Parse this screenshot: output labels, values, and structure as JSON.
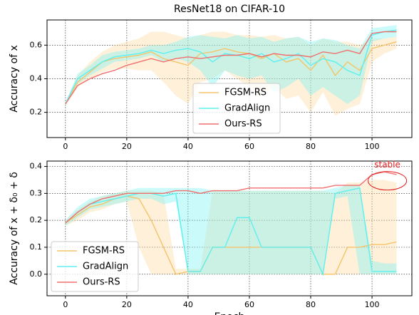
{
  "chart_data": [
    {
      "type": "line",
      "title": "ResNet18 on CIFAR-10",
      "ylabel": "Accuracy of x",
      "x": [
        0,
        4,
        8,
        12,
        16,
        20,
        24,
        28,
        32,
        36,
        40,
        44,
        48,
        52,
        56,
        60,
        64,
        68,
        72,
        76,
        80,
        84,
        88,
        92,
        96,
        100,
        104,
        108
      ],
      "xlim": [
        -6,
        113
      ],
      "xticks": [
        0,
        20,
        40,
        60,
        80,
        100
      ],
      "ylim": [
        0.05,
        0.75
      ],
      "yticks": [
        0.2,
        0.4,
        0.6
      ],
      "grid": true,
      "legend": "lower center",
      "series": [
        {
          "name": "FGSM-RS",
          "color": "#f5c46b",
          "band_color": "#fcd9a0",
          "values": [
            0.25,
            0.38,
            0.44,
            0.5,
            0.52,
            0.53,
            0.54,
            0.56,
            0.52,
            0.5,
            0.48,
            0.55,
            0.56,
            0.58,
            0.56,
            0.55,
            0.52,
            0.55,
            0.5,
            0.52,
            0.45,
            0.54,
            0.42,
            0.5,
            0.45,
            0.58,
            0.6,
            0.62
          ],
          "lower": [
            0.24,
            0.35,
            0.4,
            0.44,
            0.46,
            0.46,
            0.45,
            0.45,
            0.38,
            0.3,
            0.25,
            0.38,
            0.4,
            0.45,
            0.4,
            0.35,
            0.3,
            0.35,
            0.28,
            0.3,
            0.2,
            0.32,
            0.18,
            0.22,
            0.25,
            0.5,
            0.55,
            0.58
          ],
          "upper": [
            0.26,
            0.42,
            0.5,
            0.56,
            0.6,
            0.62,
            0.64,
            0.68,
            0.68,
            0.66,
            0.64,
            0.66,
            0.68,
            0.68,
            0.66,
            0.66,
            0.65,
            0.66,
            0.64,
            0.65,
            0.6,
            0.64,
            0.62,
            0.62,
            0.6,
            0.64,
            0.64,
            0.65
          ]
        },
        {
          "name": "GradAlign",
          "color": "#5ef0f0",
          "band_color": "#7df3f3",
          "values": [
            0.25,
            0.4,
            0.45,
            0.5,
            0.53,
            0.54,
            0.55,
            0.57,
            0.55,
            0.57,
            0.58,
            0.56,
            0.5,
            0.55,
            0.54,
            0.52,
            0.55,
            0.5,
            0.52,
            0.55,
            0.48,
            0.52,
            0.5,
            0.45,
            0.42,
            0.66,
            0.68,
            0.69
          ],
          "lower": [
            0.24,
            0.37,
            0.42,
            0.46,
            0.5,
            0.51,
            0.52,
            0.54,
            0.5,
            0.52,
            0.5,
            0.45,
            0.35,
            0.45,
            0.42,
            0.4,
            0.42,
            0.32,
            0.35,
            0.4,
            0.3,
            0.35,
            0.3,
            0.25,
            0.3,
            0.62,
            0.64,
            0.65
          ],
          "upper": [
            0.26,
            0.43,
            0.48,
            0.54,
            0.56,
            0.57,
            0.58,
            0.6,
            0.6,
            0.62,
            0.65,
            0.66,
            0.65,
            0.64,
            0.66,
            0.64,
            0.65,
            0.62,
            0.64,
            0.65,
            0.62,
            0.64,
            0.63,
            0.6,
            0.58,
            0.7,
            0.71,
            0.72
          ]
        },
        {
          "name": "Ours-RS",
          "color": "#f07070",
          "values": [
            0.25,
            0.36,
            0.4,
            0.43,
            0.45,
            0.48,
            0.5,
            0.52,
            0.5,
            0.52,
            0.53,
            0.52,
            0.53,
            0.54,
            0.54,
            0.55,
            0.53,
            0.55,
            0.54,
            0.54,
            0.53,
            0.56,
            0.55,
            0.57,
            0.55,
            0.67,
            0.68,
            0.68
          ]
        }
      ]
    },
    {
      "type": "line",
      "ylabel": "Accuracy of x + δ₀ + δ",
      "xlabel": "Epoch",
      "x": [
        0,
        4,
        8,
        12,
        16,
        20,
        24,
        28,
        32,
        36,
        40,
        44,
        48,
        52,
        56,
        60,
        64,
        68,
        72,
        76,
        80,
        84,
        88,
        92,
        96,
        100,
        104,
        108
      ],
      "xlim": [
        -6,
        113
      ],
      "xticks": [
        0,
        20,
        40,
        60,
        80,
        100
      ],
      "ylim": [
        -0.08,
        0.42
      ],
      "yticks": [
        {
          "value": 0,
          "label": "0.0"
        },
        0.1,
        0.2,
        0.3,
        0.4
      ],
      "grid": true,
      "legend": "lower left",
      "annotation": {
        "text": "stable",
        "x": 105,
        "y": 0.405,
        "color": "#e02020"
      },
      "series": [
        {
          "name": "FGSM-RS",
          "color": "#f5c46b",
          "band_color": "#fcd9a0",
          "values": [
            0.19,
            0.22,
            0.25,
            0.26,
            0.28,
            0.29,
            0.28,
            0.2,
            0.1,
            0,
            0.01,
            0.01,
            0.1,
            0.1,
            0.1,
            0.1,
            0.1,
            0.1,
            0.1,
            0.1,
            0.1,
            0,
            0,
            0.1,
            0.1,
            0.11,
            0.11,
            0.12
          ],
          "lower": [
            0.18,
            0.2,
            0.23,
            0.24,
            0.26,
            0.27,
            0.1,
            0,
            0,
            0,
            0,
            0,
            0,
            0,
            0,
            0,
            0,
            0,
            0,
            0,
            0,
            0,
            0,
            0,
            0,
            0,
            0,
            0
          ],
          "upper": [
            0.2,
            0.24,
            0.27,
            0.29,
            0.3,
            0.31,
            0.31,
            0.31,
            0.3,
            0.02,
            0.02,
            0.02,
            0.31,
            0.31,
            0.31,
            0.31,
            0.31,
            0.31,
            0.31,
            0.31,
            0.31,
            0.31,
            0.3,
            0.34,
            0.34,
            0.35,
            0.35,
            0.34
          ]
        },
        {
          "name": "GradAlign",
          "color": "#5ef0f0",
          "band_color": "#7df3f3",
          "values": [
            0.19,
            0.23,
            0.26,
            0.27,
            0.28,
            0.29,
            0.3,
            0.3,
            0.29,
            0.3,
            0.01,
            0.01,
            0.1,
            0.1,
            0.21,
            0.21,
            0.1,
            0.1,
            0.1,
            0.1,
            0.1,
            0,
            0.3,
            0.31,
            0.32,
            0.01,
            0.01,
            0.01
          ],
          "lower": [
            0.18,
            0.21,
            0.24,
            0.25,
            0.26,
            0.27,
            0.28,
            0.28,
            0.26,
            0.27,
            0,
            0,
            0,
            0,
            0,
            0,
            0,
            0,
            0,
            0,
            0,
            0,
            0.28,
            0.29,
            0,
            0,
            0,
            0
          ],
          "upper": [
            0.2,
            0.25,
            0.28,
            0.29,
            0.3,
            0.31,
            0.32,
            0.32,
            0.32,
            0.32,
            0.32,
            0.32,
            0.31,
            0.31,
            0.31,
            0.31,
            0.31,
            0.31,
            0.31,
            0.31,
            0.31,
            0.31,
            0.32,
            0.33,
            0.33,
            0.05,
            0.04,
            0.04
          ]
        },
        {
          "name": "Ours-RS",
          "color": "#f07070",
          "values": [
            0.19,
            0.23,
            0.26,
            0.28,
            0.29,
            0.3,
            0.3,
            0.3,
            0.3,
            0.31,
            0.31,
            0.3,
            0.31,
            0.31,
            0.31,
            0.32,
            0.32,
            0.32,
            0.32,
            0.32,
            0.32,
            0.32,
            0.33,
            0.33,
            0.33,
            0.37,
            0.38,
            0.37
          ]
        }
      ]
    }
  ]
}
